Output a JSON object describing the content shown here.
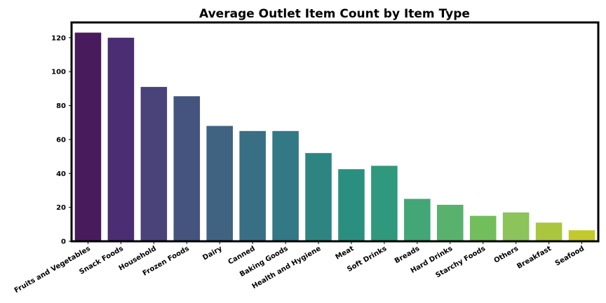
{
  "chart_data": {
    "type": "bar",
    "title": "Average Outlet Item Count by Item Type",
    "xlabel": "",
    "ylabel": "",
    "categories": [
      "Fruits and Vegetables",
      "Snack Foods",
      "Household",
      "Frozen Foods",
      "Dairy",
      "Canned",
      "Baking Goods",
      "Health and Hygiene",
      "Meat",
      "Soft Drinks",
      "Breads",
      "Hard Drinks",
      "Starchy Foods",
      "Others",
      "Breakfast",
      "Seafood"
    ],
    "values": [
      123,
      120,
      91,
      85.5,
      68,
      65,
      65,
      52,
      42.5,
      44.5,
      25,
      21.5,
      15,
      17,
      11,
      6.5
    ],
    "ylim": [
      0,
      129
    ],
    "yticks": [
      0,
      20,
      40,
      60,
      80,
      100,
      120
    ],
    "grid": false,
    "legend": "none",
    "colors": [
      "#481b5c",
      "#4a2d72",
      "#4a4379",
      "#44547e",
      "#3f6381",
      "#386f84",
      "#327885",
      "#2e8480",
      "#2b8f7f",
      "#30987c",
      "#42a677",
      "#58b26d",
      "#72be5c",
      "#8cc35a",
      "#a9c63e",
      "#c3c92c"
    ],
    "bar_labels_shown": false
  }
}
